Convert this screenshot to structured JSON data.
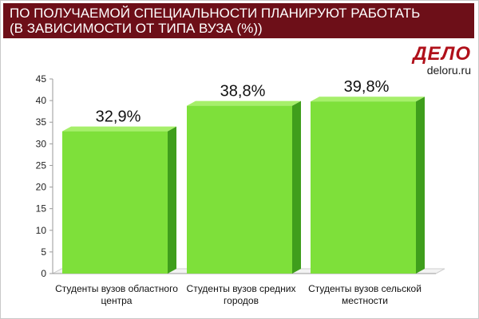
{
  "header": {
    "line1": "ПО ПОЛУЧАЕМОЙ СПЕЦИАЛЬНОСТИ ПЛАНИРУЮТ РАБОТАТЬ",
    "line2": "(В ЗАВИСИМОСТИ ОТ ТИПА ВУЗА (%))"
  },
  "logo": {
    "mark": "ДЕЛО",
    "site": "deloru.ru"
  },
  "colors": {
    "header_bg": "#6d0f18",
    "bar_front": "#7ee03a",
    "bar_top": "#a6ef6a",
    "bar_side": "#3f9e1c",
    "logo_red": "#b0101a"
  },
  "chart_data": {
    "type": "bar",
    "categories": [
      [
        "Студенты вузов областного",
        "центра"
      ],
      [
        "Студенты вузов средних",
        "городов"
      ],
      [
        "Студенты вузов сельской",
        "местности"
      ]
    ],
    "values": [
      32.9,
      38.8,
      39.8
    ],
    "value_labels": [
      "32,9%",
      "38,8%",
      "39,8%"
    ],
    "yticks": [
      "0",
      "5",
      "10",
      "15",
      "20",
      "25",
      "30",
      "35",
      "40",
      "45"
    ],
    "ylim": [
      0,
      45
    ],
    "grid": false,
    "style": "3d"
  }
}
